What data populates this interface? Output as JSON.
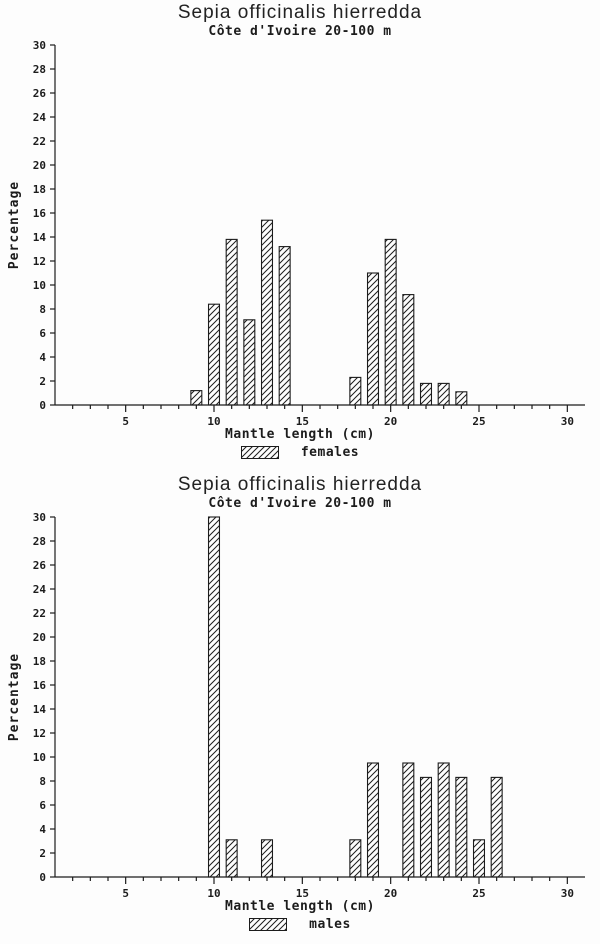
{
  "chart_data": [
    {
      "type": "bar",
      "title": "Sepia officinalis hierredda",
      "subtitle": "Côte d'Ivoire 20-100 m",
      "xlabel": "Mantle length (cm)",
      "ylabel": "Percentage",
      "legend": "females",
      "legend_position": "below x-axis label",
      "grid": false,
      "xlim": [
        1,
        31
      ],
      "ylim": [
        0,
        30
      ],
      "ytick_step": 2,
      "xticks_major": [
        5,
        10,
        15,
        20,
        25,
        30
      ],
      "bar_width": 0.62,
      "bar_fill": "diagonal-hatch",
      "x": [
        9,
        10,
        11,
        12,
        13,
        14,
        18,
        19,
        20,
        21,
        22,
        23,
        24
      ],
      "values": [
        1.2,
        8.4,
        13.8,
        7.1,
        15.4,
        13.2,
        2.3,
        11.0,
        13.8,
        9.2,
        1.8,
        1.8,
        1.1
      ]
    },
    {
      "type": "bar",
      "title": "Sepia officinalis hierredda",
      "subtitle": "Côte d'Ivoire 20-100 m",
      "xlabel": "Mantle length (cm)",
      "ylabel": "Percentage",
      "legend": "males",
      "legend_position": "below x-axis label",
      "grid": false,
      "xlim": [
        1,
        31
      ],
      "ylim": [
        0,
        30
      ],
      "ytick_step": 2,
      "xticks_major": [
        5,
        10,
        15,
        20,
        25,
        30
      ],
      "bar_width": 0.62,
      "bar_fill": "diagonal-hatch",
      "x": [
        10,
        11,
        13,
        18,
        19,
        21,
        22,
        23,
        24,
        25,
        26
      ],
      "values": [
        30.0,
        3.1,
        3.1,
        3.1,
        9.5,
        9.5,
        8.3,
        9.5,
        8.3,
        3.1,
        8.3
      ]
    }
  ],
  "colors": {
    "ink": "#1c1c1c",
    "background": "#fdfdfd"
  }
}
